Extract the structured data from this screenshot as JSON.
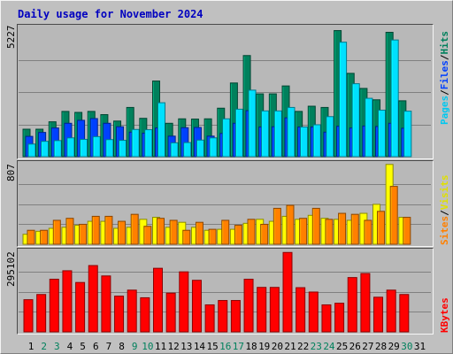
{
  "title": "Daily usage for November 2024",
  "colors": {
    "hits": "#00805c",
    "files": "#0040ff",
    "pages": "#00e0ff",
    "visits": "#ffff00",
    "sites": "#ff8000",
    "kbytes": "#ff0000",
    "weekend_day": "#00805c",
    "weekday": "#000000",
    "background": "#c0c0c0",
    "panel": "#b8b8b8",
    "gridline": "#808080"
  },
  "chart_data": [
    {
      "type": "bar",
      "y_max_label": "5227",
      "legend": [
        "Pages",
        "Files",
        "Hits"
      ],
      "ylim": [
        0,
        5227
      ],
      "categories": [
        "1",
        "2",
        "3",
        "4",
        "5",
        "6",
        "7",
        "8",
        "9",
        "10",
        "11",
        "12",
        "13",
        "14",
        "15",
        "16",
        "17",
        "18",
        "19",
        "20",
        "21",
        "22",
        "23",
        "24",
        "25",
        "26",
        "27",
        "28",
        "29",
        "30",
        "31"
      ],
      "series": [
        {
          "name": "Hits",
          "values": [
            1110,
            1110,
            1410,
            1830,
            1790,
            1830,
            1700,
            1440,
            1990,
            1550,
            3060,
            1350,
            1530,
            1520,
            1530,
            1960,
            2980,
            4090,
            2540,
            2540,
            2860,
            1830,
            2040,
            1990,
            5100,
            3370,
            2760,
            2300,
            5030,
            2260,
            0
          ]
        },
        {
          "name": "Files",
          "values": [
            820,
            980,
            1160,
            1350,
            1470,
            1540,
            1350,
            1210,
            990,
            950,
            1160,
            830,
            1170,
            1180,
            830,
            940,
            1350,
            1860,
            1200,
            1210,
            1570,
            1200,
            1200,
            990,
            1230,
            1160,
            1240,
            1220,
            1350,
            1150,
            0
          ]
        },
        {
          "name": "Pages",
          "values": [
            510,
            620,
            650,
            760,
            700,
            810,
            690,
            660,
            1100,
            1090,
            2180,
            560,
            570,
            670,
            760,
            1530,
            1920,
            2690,
            1850,
            1850,
            1990,
            1200,
            1290,
            1620,
            4630,
            2950,
            2360,
            1880,
            4720,
            1840,
            0
          ]
        }
      ]
    },
    {
      "type": "bar",
      "y_max_label": "807",
      "legend": [
        "Sites",
        "Visits"
      ],
      "ylim": [
        0,
        807
      ],
      "categories": [
        "1",
        "2",
        "3",
        "4",
        "5",
        "6",
        "7",
        "8",
        "9",
        "10",
        "11",
        "12",
        "13",
        "14",
        "15",
        "16",
        "17",
        "18",
        "19",
        "20",
        "21",
        "22",
        "23",
        "24",
        "25",
        "26",
        "27",
        "28",
        "29",
        "30",
        "31"
      ],
      "series": [
        {
          "name": "Visits",
          "values": [
            100,
            130,
            160,
            170,
            190,
            230,
            230,
            160,
            170,
            250,
            270,
            170,
            220,
            170,
            140,
            150,
            150,
            210,
            250,
            230,
            280,
            250,
            290,
            260,
            250,
            240,
            310,
            400,
            800,
            270,
            0
          ]
        },
        {
          "name": "Sites",
          "values": [
            140,
            140,
            240,
            260,
            200,
            280,
            280,
            230,
            300,
            180,
            260,
            240,
            140,
            220,
            150,
            240,
            190,
            250,
            200,
            360,
            390,
            260,
            360,
            250,
            310,
            300,
            240,
            330,
            580,
            270,
            0
          ]
        }
      ]
    },
    {
      "type": "bar",
      "y_max_label": "295102",
      "legend": [
        "KBytes"
      ],
      "ylim": [
        0,
        295102
      ],
      "categories": [
        "1",
        "2",
        "3",
        "4",
        "5",
        "6",
        "7",
        "8",
        "9",
        "10",
        "11",
        "12",
        "13",
        "14",
        "15",
        "16",
        "17",
        "18",
        "19",
        "20",
        "21",
        "22",
        "23",
        "24",
        "25",
        "26",
        "27",
        "28",
        "29",
        "30",
        "31"
      ],
      "series": [
        {
          "name": "KBytes",
          "values": [
            118000,
            137000,
            193000,
            224000,
            181000,
            243000,
            205000,
            131000,
            153000,
            125000,
            233000,
            142000,
            220000,
            189000,
            99000,
            115000,
            115000,
            193000,
            163000,
            163000,
            291000,
            162000,
            146000,
            99000,
            105000,
            199000,
            214000,
            127000,
            153000,
            137000,
            0
          ]
        }
      ]
    }
  ],
  "weekend_days": [
    2,
    3,
    9,
    10,
    16,
    17,
    23,
    24,
    30
  ]
}
